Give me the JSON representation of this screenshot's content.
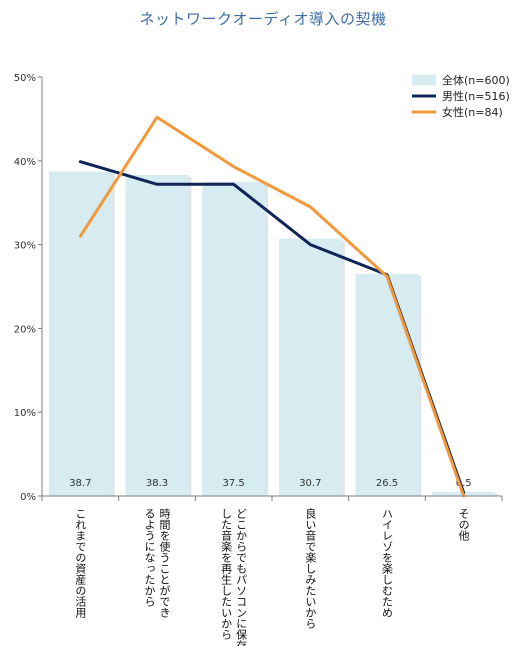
{
  "chart_data": {
    "type": "bar",
    "title": "ネットワークオーディオ導入の契機",
    "categories": [
      [
        "これまでの資産の活用"
      ],
      [
        "時間を使うことができ",
        "るようになったから"
      ],
      [
        "どこからでもパソコンに保存",
        "した音楽を再生したいから"
      ],
      [
        "良い音で楽しみたいから"
      ],
      [
        "ハイレゾを楽しむため"
      ],
      [
        "その他"
      ]
    ],
    "y_ticks": [
      "0%",
      "10%",
      "20%",
      "30%",
      "40%",
      "50%"
    ],
    "ylim": [
      0,
      50
    ],
    "series": [
      {
        "name": "全体(n=600)",
        "type": "bar",
        "color": "#d6ecf1",
        "values": [
          38.7,
          38.3,
          37.5,
          30.7,
          26.5,
          0.5
        ],
        "labels": [
          "38.7",
          "38.3",
          "37.5",
          "30.7",
          "26.5",
          "0.5"
        ]
      },
      {
        "name": "男性(n=516)",
        "type": "line",
        "color": "#0f2557",
        "values": [
          39.9,
          37.2,
          37.2,
          30.0,
          26.4,
          0.4
        ]
      },
      {
        "name": "女性(n=84)",
        "type": "line",
        "color": "#f3993a",
        "values": [
          31.0,
          45.2,
          39.3,
          34.5,
          26.2,
          0.0
        ]
      }
    ],
    "legend_position": "top-right",
    "grid": false
  }
}
